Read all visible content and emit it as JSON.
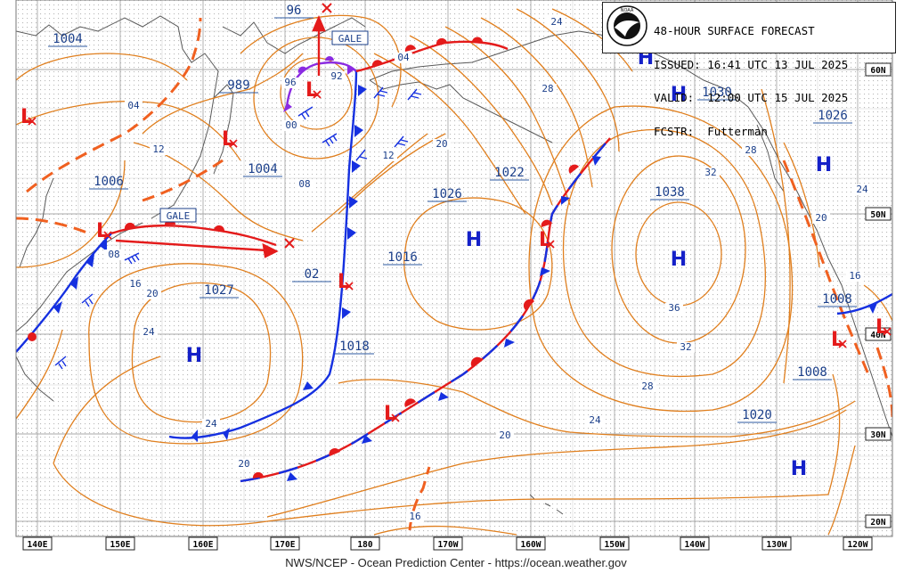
{
  "header": {
    "title": "48-HOUR SURFACE FORECAST",
    "issued_label": "ISSUED:",
    "issued": "16:41 UTC 13 JUL 2025",
    "valid_label": "VALID:",
    "valid": "12:00 UTC 15 JUL 2025",
    "fcstr_label": "FCSTR:",
    "forecaster": "Futterman",
    "logo_text": "NOAA"
  },
  "footer": "NWS/NCEP - Ocean Prediction Center - https://ocean.weather.gov",
  "colors": {
    "isobar": "#e07f1e",
    "high": "#1420c8",
    "low": "#e41b1b",
    "cold_front": "#1530e0",
    "warm_front": "#e41b1b",
    "occluded": "#8a2be2",
    "trough": "#f06020",
    "land": "#555555",
    "grid": "#9a9a9a"
  },
  "longitude_labels": [
    "140E",
    "150E",
    "160E",
    "170E",
    "180",
    "170W",
    "160W",
    "150W",
    "140W",
    "130W",
    "120W"
  ],
  "latitude_labels": [
    "60N",
    "50N",
    "40N",
    "30N",
    "20N"
  ],
  "pressure_centers": [
    {
      "type": "H",
      "value": "1030"
    },
    {
      "type": "H",
      "value": "1038"
    },
    {
      "type": "H",
      "value": "1026"
    },
    {
      "type": "H",
      "value": "1027"
    },
    {
      "type": "H",
      "value": "1020"
    },
    {
      "type": "L",
      "value": "1004"
    },
    {
      "type": "L",
      "value": "989"
    },
    {
      "type": "L",
      "value": "1004"
    },
    {
      "type": "L",
      "value": "1006"
    },
    {
      "type": "L",
      "value": "1022"
    },
    {
      "type": "L",
      "value": "1016"
    },
    {
      "type": "L",
      "value": "02"
    },
    {
      "type": "L",
      "value": "1018"
    },
    {
      "type": "L",
      "value": "1008"
    },
    {
      "type": "L",
      "value": "1008"
    },
    {
      "type": "L",
      "value": "1026"
    },
    {
      "type": "L",
      "value": "96"
    }
  ],
  "isobar_labels": [
    "24",
    "28",
    "04",
    "08",
    "12",
    "20",
    "16",
    "20",
    "24",
    "36",
    "32",
    "28",
    "24",
    "20",
    "16",
    "20",
    "24",
    "32",
    "28",
    "20",
    "24",
    "16",
    "00",
    "96",
    "92",
    "08",
    "04",
    "12"
  ],
  "warnings": [
    "GALE",
    "GALE"
  ]
}
